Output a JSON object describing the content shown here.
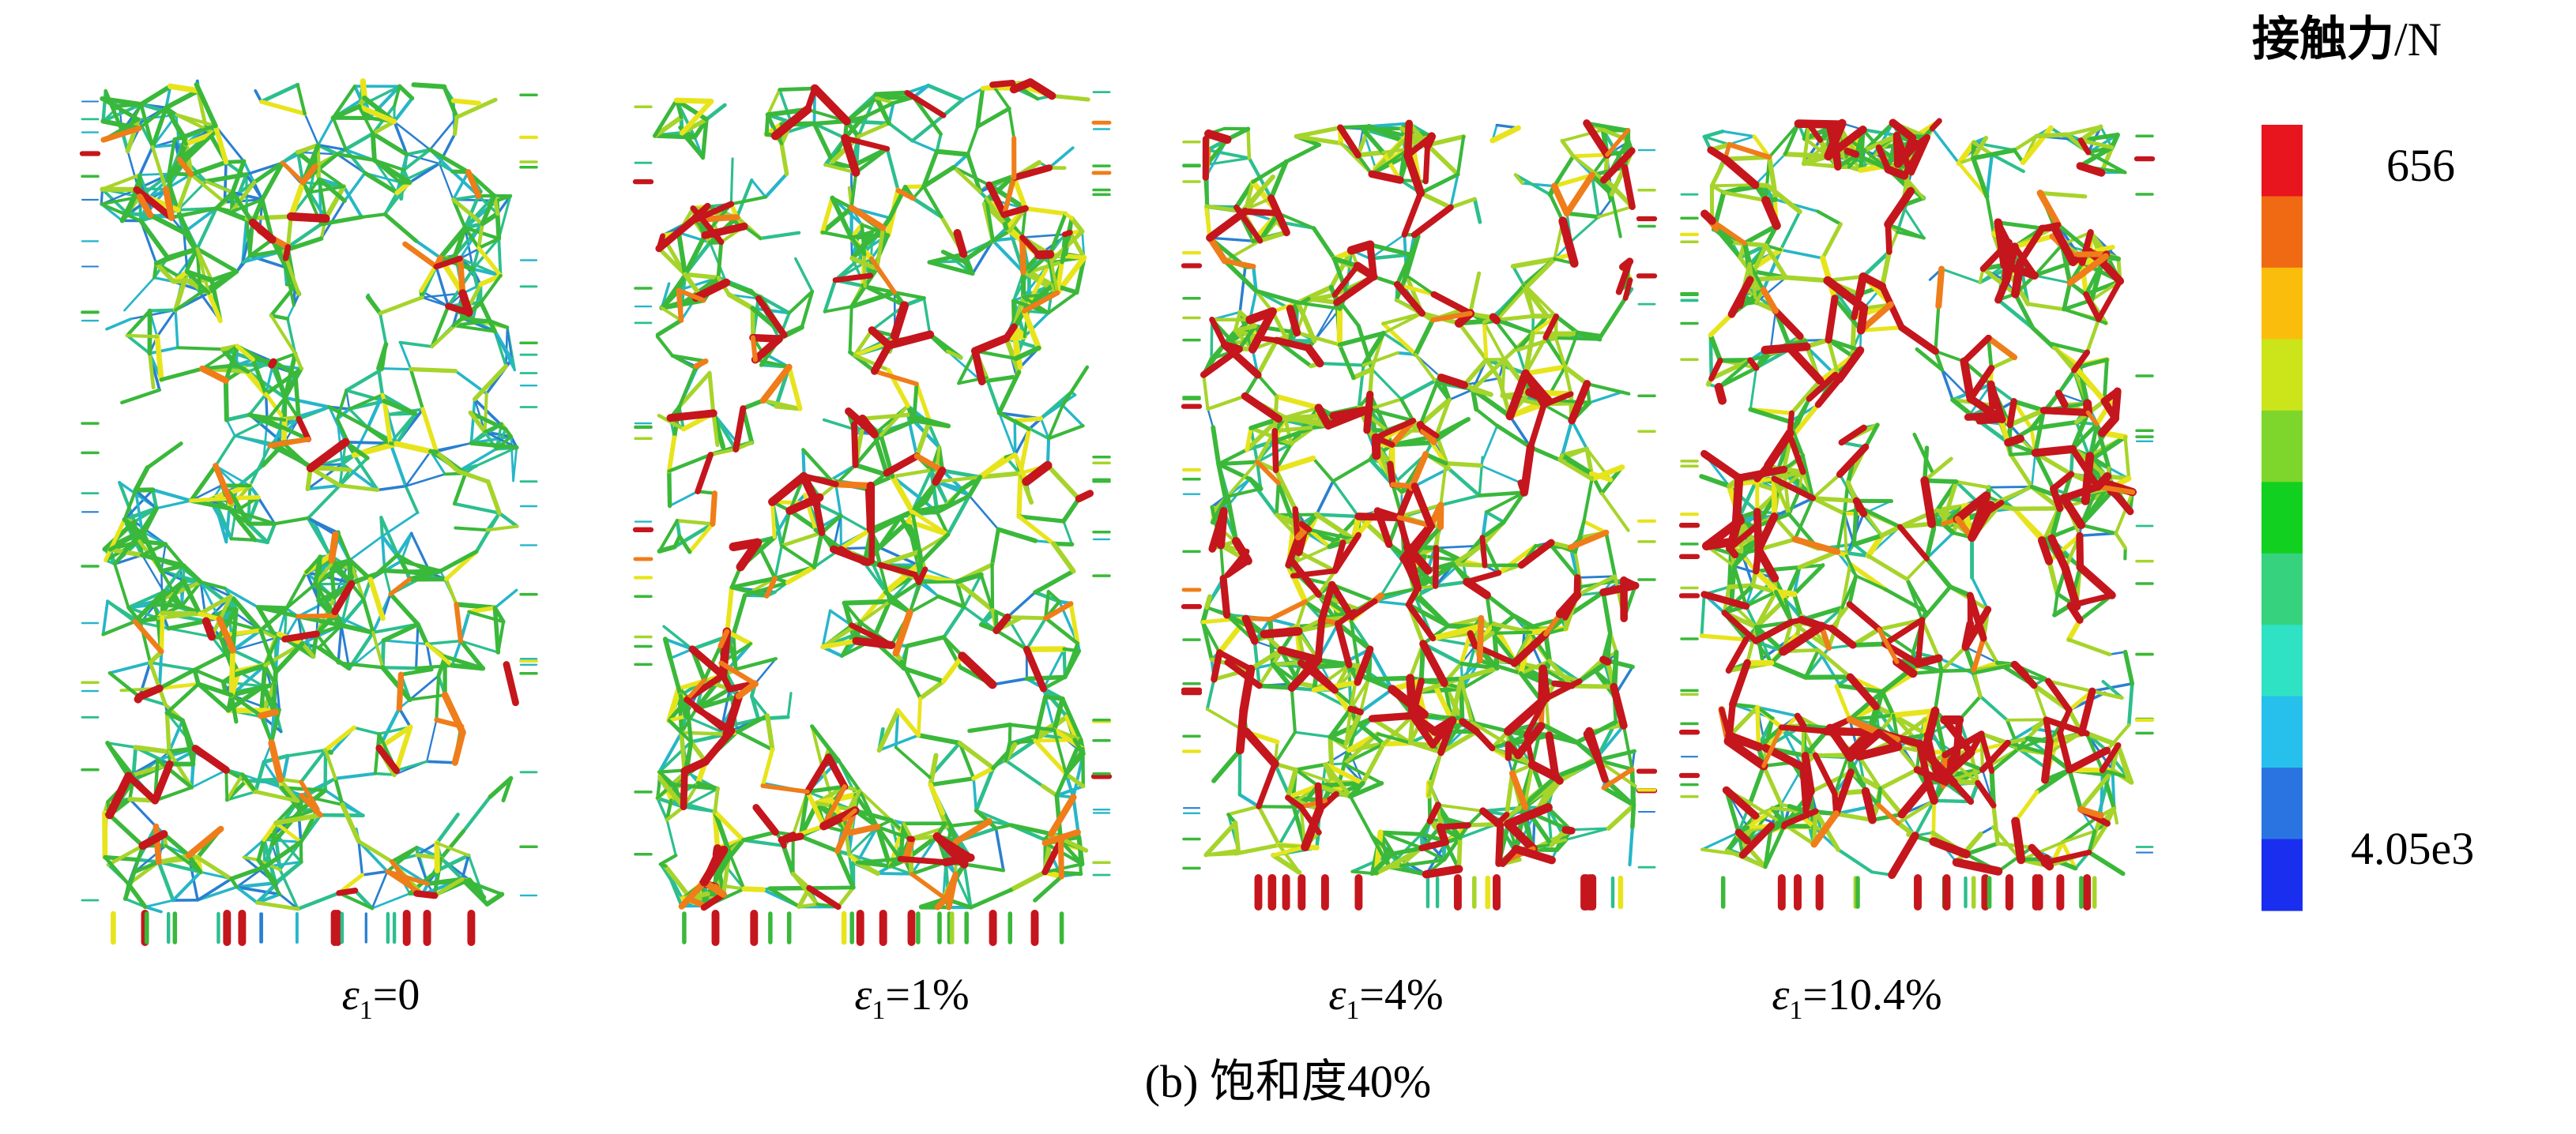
{
  "figure": {
    "caption": "(b) 饱和度40%"
  },
  "panels": [
    {
      "eps_symbol": "ε",
      "eps_sub": "1",
      "value_text": "=0"
    },
    {
      "eps_symbol": "ε",
      "eps_sub": "1",
      "value_text": "=1%"
    },
    {
      "eps_symbol": "ε",
      "eps_sub": "1",
      "value_text": "=4%"
    },
    {
      "eps_symbol": "ε",
      "eps_sub": "1",
      "value_text": "=10.4%"
    }
  ],
  "legend": {
    "title": "接触力",
    "unit": "/N",
    "max_label": "656",
    "min_label": "4.05e3",
    "colors": [
      "#e8141e",
      "#f06a14",
      "#fbbd0c",
      "#cbe51a",
      "#7ed62c",
      "#12d020",
      "#36d27e",
      "#2fe2c4",
      "#27c0ec",
      "#2a74e2",
      "#1a2ef0"
    ]
  },
  "network_style": {
    "palette": {
      "red": "#c4161c",
      "orange": "#ef7d1a",
      "yellow": "#e8e41c",
      "lime": "#a6d42a",
      "green": "#3ab83a",
      "teal": "#2cbf8e",
      "cyan": "#26b6c8",
      "blue": "#2a7fd0"
    },
    "panel_color_weights": [
      [
        0.015,
        0.02,
        0.05,
        0.08,
        0.3,
        0.22,
        0.17,
        0.145
      ],
      [
        0.07,
        0.03,
        0.07,
        0.14,
        0.38,
        0.17,
        0.1,
        0.04
      ],
      [
        0.17,
        0.02,
        0.06,
        0.22,
        0.3,
        0.12,
        0.06,
        0.05
      ],
      [
        0.19,
        0.02,
        0.06,
        0.22,
        0.28,
        0.12,
        0.06,
        0.05
      ]
    ]
  }
}
